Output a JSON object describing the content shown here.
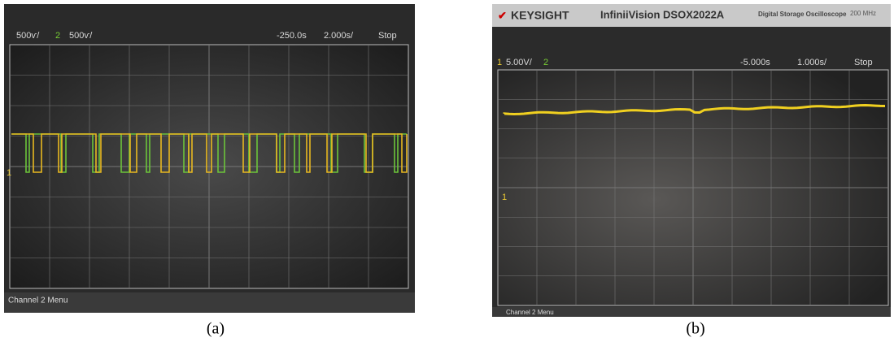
{
  "panels": [
    {
      "status_bar": [
        "500ѵ/",
        "2",
        "500ѵ/",
        "-250.0s",
        "2.000s/",
        "Stop"
      ],
      "marker": "1",
      "menu": "Channel 2 Menu",
      "caption": "(a)"
    },
    {
      "brand": "KEYSIGHT",
      "model": "InfiniiVision DSOX2022A",
      "description": "Digital Storage Oscilloscope",
      "bandwidth": "200 MHz",
      "status_bar": [
        "1",
        "5.00V/",
        "2",
        "-5.000s",
        "1.000s/",
        "Stop"
      ],
      "marker": "1",
      "menu": "Channel 2 Menu",
      "caption": "(b)"
    }
  ]
}
